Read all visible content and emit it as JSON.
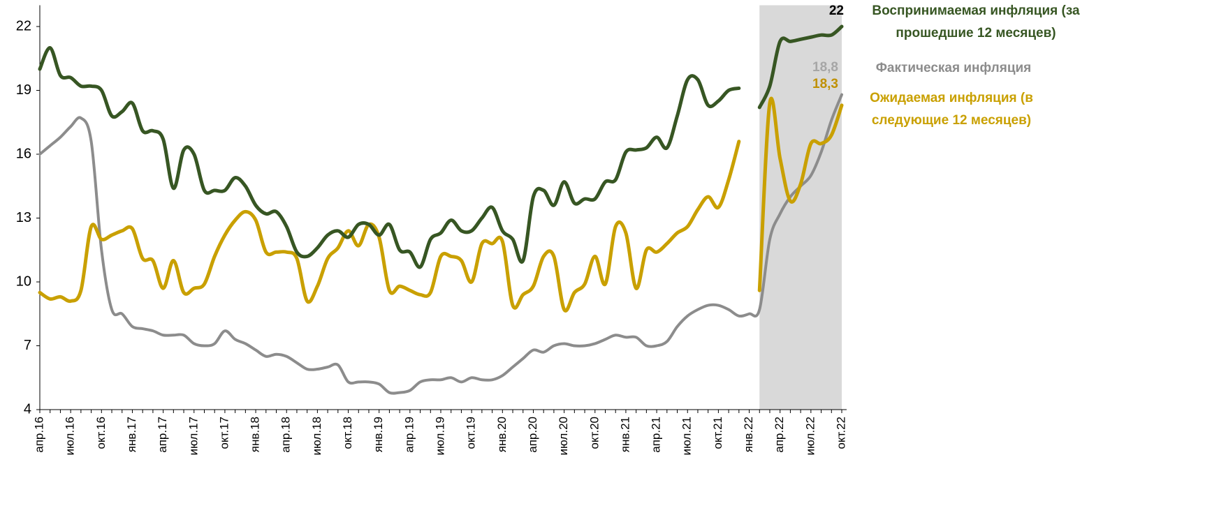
{
  "chart_data": {
    "type": "line",
    "categories": [
      "апр.16",
      null,
      null,
      "июл.16",
      null,
      null,
      "окт.16",
      null,
      null,
      "янв.17",
      null,
      null,
      "апр.17",
      null,
      null,
      "июл.17",
      null,
      null,
      "окт.17",
      null,
      null,
      "янв.18",
      null,
      null,
      "апр.18",
      null,
      null,
      "июл.18",
      null,
      null,
      "окт.18",
      null,
      null,
      "янв.19",
      null,
      null,
      "апр.19",
      null,
      null,
      "июл.19",
      null,
      null,
      "окт.19",
      null,
      null,
      "янв.20",
      null,
      null,
      "апр.20",
      null,
      null,
      "июл.20",
      null,
      null,
      "окт.20",
      null,
      null,
      "янв.21",
      null,
      null,
      "апр.21",
      null,
      null,
      "июл.21",
      null,
      null,
      "окт.21",
      null,
      null,
      "янв.22",
      null,
      null,
      "апр.22",
      null,
      null,
      "июл.22",
      null,
      null,
      "окт.22"
    ],
    "series": [
      {
        "name": "Воспринимаемая инфляция (за прошедшие 12 месяцев)",
        "color": "#375623",
        "end_label": "22",
        "end_label_color": "#000000",
        "values": [
          20.0,
          21.0,
          19.7,
          19.6,
          19.2,
          19.2,
          19.0,
          17.8,
          18.0,
          18.4,
          17.1,
          17.1,
          16.7,
          14.4,
          16.2,
          16.0,
          14.3,
          14.3,
          14.3,
          14.9,
          14.5,
          13.6,
          13.2,
          13.3,
          12.6,
          11.4,
          11.2,
          11.6,
          12.2,
          12.4,
          12.1,
          12.7,
          12.7,
          12.2,
          12.7,
          11.5,
          11.4,
          10.7,
          12.0,
          12.3,
          12.9,
          12.4,
          12.4,
          13.0,
          13.5,
          12.4,
          12.0,
          11.0,
          14.0,
          14.3,
          13.6,
          14.7,
          13.7,
          13.9,
          13.9,
          14.7,
          14.8,
          16.1,
          16.2,
          16.3,
          16.8,
          16.3,
          17.8,
          19.5,
          19.5,
          18.3,
          18.5,
          19.0,
          19.1,
          null,
          18.2,
          19.2,
          21.3,
          21.3,
          21.4,
          21.5,
          21.6,
          21.6,
          22.0
        ]
      },
      {
        "name": "Фактическая инфляция",
        "color": "#8c8c8c",
        "end_label": "18,8",
        "end_label_color": "#a6a6a6",
        "values": [
          16.0,
          16.4,
          16.8,
          17.3,
          17.7,
          16.6,
          11.5,
          8.7,
          8.5,
          7.9,
          7.8,
          7.7,
          7.5,
          7.5,
          7.5,
          7.1,
          7.0,
          7.1,
          7.7,
          7.3,
          7.1,
          6.8,
          6.5,
          6.6,
          6.5,
          6.2,
          5.9,
          5.9,
          6.0,
          6.1,
          5.3,
          5.3,
          5.3,
          5.2,
          4.8,
          4.8,
          4.9,
          5.3,
          5.4,
          5.4,
          5.5,
          5.3,
          5.5,
          5.4,
          5.4,
          5.6,
          6.0,
          6.4,
          6.8,
          6.7,
          7.0,
          7.1,
          7.0,
          7.0,
          7.1,
          7.3,
          7.5,
          7.4,
          7.4,
          7.0,
          7.0,
          7.2,
          7.9,
          8.4,
          8.7,
          8.9,
          8.9,
          8.7,
          8.4,
          8.5,
          8.7,
          12.0,
          13.2,
          14.0,
          14.5,
          15.0,
          16.1,
          17.6,
          18.8
        ]
      },
      {
        "name": "Ожидаемая инфляция (в следующие 12 месяцев)",
        "color": "#c9a000",
        "end_label": "18,3",
        "end_label_color": "#bf9000",
        "values": [
          9.5,
          9.2,
          9.3,
          9.1,
          9.6,
          12.6,
          12.0,
          12.2,
          12.4,
          12.5,
          11.1,
          11.0,
          9.7,
          11.0,
          9.5,
          9.7,
          9.9,
          11.2,
          12.2,
          12.9,
          13.3,
          12.9,
          11.4,
          11.4,
          11.4,
          11.1,
          9.1,
          9.8,
          11.1,
          11.6,
          12.4,
          11.7,
          12.7,
          12.1,
          9.6,
          9.8,
          9.6,
          9.4,
          9.5,
          11.2,
          11.2,
          11.0,
          10.0,
          11.8,
          11.8,
          11.9,
          8.9,
          9.4,
          9.8,
          11.2,
          11.2,
          8.7,
          9.5,
          9.9,
          11.2,
          9.9,
          12.6,
          12.3,
          9.7,
          11.5,
          11.4,
          11.8,
          12.3,
          12.6,
          13.4,
          14.0,
          13.5,
          14.8,
          16.6,
          null,
          9.6,
          18.4,
          15.8,
          13.8,
          14.6,
          16.5,
          16.5,
          16.9,
          18.3
        ]
      }
    ],
    "ylim": [
      4,
      23
    ],
    "yticks": [
      4,
      7,
      10,
      13,
      16,
      19,
      22
    ],
    "grid": false,
    "highlight_color": "#d9d9d9"
  }
}
